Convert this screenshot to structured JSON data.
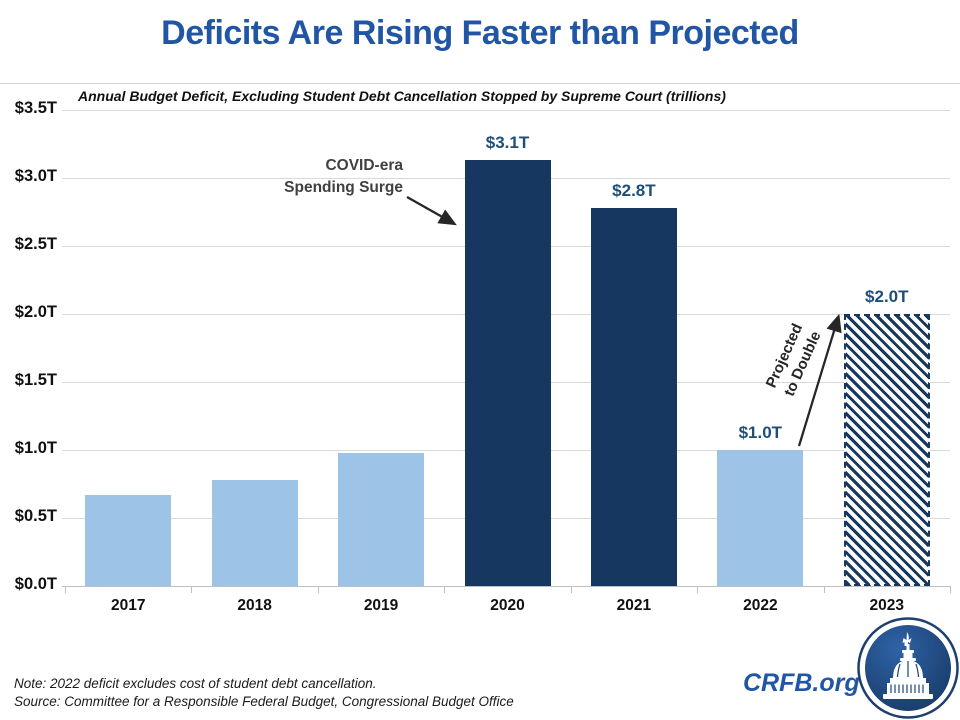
{
  "header": {
    "title": "Deficits Are Rising Faster than Projected"
  },
  "chart_data": {
    "type": "bar",
    "title": "Annual Budget Deficit, Excluding Student Debt Cancellation Stopped by Supreme Court (trillions)",
    "categories": [
      "2017",
      "2018",
      "2019",
      "2020",
      "2021",
      "2022",
      "2023"
    ],
    "values": [
      0.67,
      0.78,
      0.98,
      3.13,
      2.78,
      1.0,
      2.0
    ],
    "bar_styles": [
      "light",
      "light",
      "light",
      "dark",
      "dark",
      "light",
      "hatched"
    ],
    "value_labels": [
      null,
      null,
      null,
      "$3.1T",
      "$2.8T",
      "$1.0T",
      "$2.0T"
    ],
    "xlabel": "",
    "ylabel": "",
    "ylim": [
      0,
      3.5
    ],
    "ytick_step": 0.5,
    "ytick_labels": [
      "$0.0T",
      "$0.5T",
      "$1.0T",
      "$1.5T",
      "$2.0T",
      "$2.5T",
      "$3.0T",
      "$3.5T"
    ],
    "grid": true,
    "legend": "none",
    "annotations": [
      {
        "lines": [
          "COVID-era",
          "Spending Surge"
        ],
        "target": "2020-bar"
      },
      {
        "lines": [
          "Projected",
          "to Double"
        ],
        "target": "2023-bar",
        "rotated": true
      }
    ],
    "colors": {
      "light_bar": "#9DC3E6",
      "dark_bar": "#16375F",
      "hatch_stripe": "#16375F",
      "value_label": "#1F4E79",
      "gridline": "#D9D9D9",
      "axis": "#BFBFBF",
      "annotation_text": "#404040",
      "arrow": "#262626",
      "title": "#2156A5"
    }
  },
  "footer": {
    "note": "Note: 2022 deficit excludes cost of student debt cancellation.",
    "source": "Source: Committee for a Responsible Federal Budget, Congressional Budget Office",
    "brand": "CRFB.org",
    "brand_color": "#2156A5",
    "logo": "capitol-dome-icon"
  }
}
